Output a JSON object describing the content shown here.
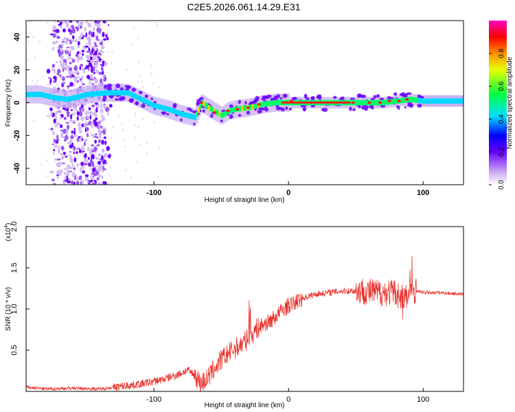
{
  "title": "C2E5.2026.061.14.29.E31",
  "colors": {
    "snr_line": "#e8302b",
    "frame": "#000000"
  },
  "chart_data": [
    {
      "type": "heatmap",
      "name": "spectrogram",
      "xlabel": "Height of straight line (km)",
      "ylabel": "Frequency (Hz)",
      "xlim": [
        -195,
        130
      ],
      "ylim": [
        -50,
        50
      ],
      "xticks": [
        -100,
        0,
        100
      ],
      "yticks": [
        -40,
        -20,
        0,
        20,
        40
      ],
      "noise_region": [
        -175,
        -135
      ],
      "ridge": [
        [
          -195,
          5
        ],
        [
          -185,
          5
        ],
        [
          -175,
          3
        ],
        [
          -165,
          2
        ],
        [
          -150,
          5
        ],
        [
          -135,
          6
        ],
        [
          -120,
          6
        ],
        [
          -110,
          2
        ],
        [
          -100,
          -2
        ],
        [
          -90,
          -4
        ],
        [
          -80,
          -7
        ],
        [
          -70,
          -9
        ],
        [
          -65,
          0
        ],
        [
          -60,
          -3
        ],
        [
          -50,
          -8
        ],
        [
          -45,
          -5
        ],
        [
          -40,
          -4
        ],
        [
          -30,
          -3
        ],
        [
          -20,
          -1
        ],
        [
          -10,
          0
        ],
        [
          0,
          0
        ],
        [
          10,
          0
        ],
        [
          20,
          0
        ],
        [
          40,
          0
        ],
        [
          50,
          0
        ],
        [
          60,
          0
        ],
        [
          70,
          0
        ],
        [
          80,
          1
        ],
        [
          90,
          2
        ],
        [
          100,
          1
        ],
        [
          130,
          1
        ]
      ],
      "colorbar": {
        "label": "Normalized spectral amplitude",
        "ticks": [
          "0.0",
          "0.2",
          "0.4",
          "0.6",
          "0.8"
        ],
        "range": [
          0,
          1
        ]
      }
    },
    {
      "type": "line",
      "name": "snr",
      "xlabel": "Height of straight line (km)",
      "ylabel": "SNR (10 * v/v)",
      "scale_label": "(x10",
      "scale_exp": "4",
      "scale_close": ")",
      "xlim": [
        -195,
        130
      ],
      "ylim": [
        0,
        2.0
      ],
      "xticks": [
        -100,
        0,
        100
      ],
      "yticks": [
        "0.5",
        "1.0",
        "1.5",
        "2.0"
      ],
      "series": [
        {
          "name": "SNR",
          "x": [
            -195,
            -180,
            -160,
            -140,
            -130,
            -120,
            -110,
            -100,
            -90,
            -80,
            -75,
            -70,
            -65,
            -60,
            -55,
            -50,
            -45,
            -40,
            -35,
            -30,
            -25,
            -20,
            -15,
            -10,
            -5,
            0,
            5,
            10,
            20,
            30,
            40,
            50,
            55,
            60,
            65,
            70,
            75,
            80,
            85,
            88,
            92,
            95,
            100,
            110,
            120,
            130
          ],
          "y": [
            0.05,
            0.03,
            0.04,
            0.03,
            0.05,
            0.07,
            0.09,
            0.12,
            0.16,
            0.22,
            0.26,
            0.2,
            0.1,
            0.16,
            0.28,
            0.38,
            0.46,
            0.52,
            0.57,
            0.64,
            0.74,
            0.8,
            0.84,
            0.9,
            0.98,
            1.04,
            1.08,
            1.13,
            1.18,
            1.2,
            1.22,
            1.22,
            1.22,
            1.21,
            1.2,
            1.2,
            1.2,
            1.2,
            1.1,
            1.15,
            1.25,
            1.22,
            1.2,
            1.2,
            1.19,
            1.18
          ]
        }
      ]
    }
  ]
}
